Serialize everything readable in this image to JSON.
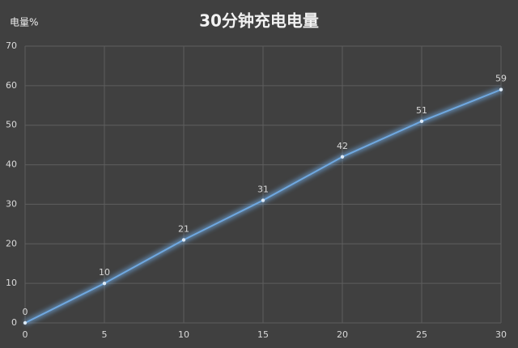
{
  "chart_data": {
    "type": "line",
    "title": "30分钟充电电量",
    "y_label": "电量%",
    "x": [
      0,
      5,
      10,
      15,
      20,
      25,
      30
    ],
    "series": [
      {
        "name": "电量",
        "color": "#6fa8e0",
        "values": [
          0,
          10,
          21,
          31,
          42,
          51,
          59
        ]
      }
    ],
    "xlim": [
      0,
      30
    ],
    "xticks": [
      0,
      5,
      10,
      15,
      20,
      25,
      30
    ],
    "ylim": [
      0,
      70
    ],
    "yticks": [
      0,
      10,
      20,
      30,
      40,
      50,
      60,
      70
    ],
    "grid": true
  }
}
